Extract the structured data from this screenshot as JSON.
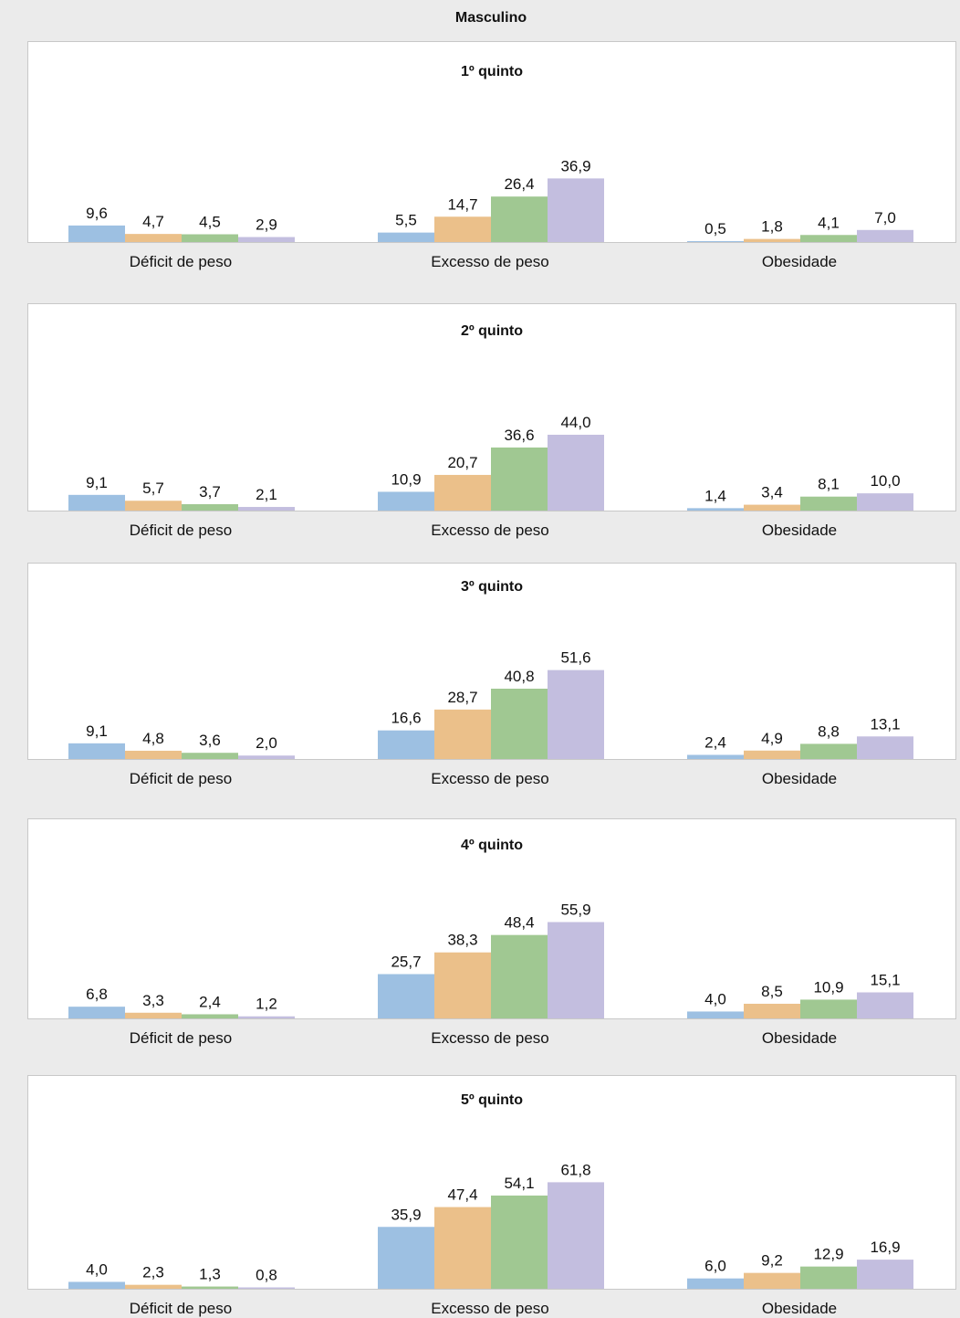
{
  "title": "Masculino",
  "colors": [
    "#9dc0e2",
    "#ebc08a",
    "#a0c892",
    "#c3bedf"
  ],
  "chart_data": [
    {
      "type": "bar",
      "title": "1º quinto",
      "categories": [
        "Déficit de peso",
        "Excesso de peso",
        "Obesidade"
      ],
      "series": [
        {
          "values": [
            9.6,
            5.5,
            0.5
          ]
        },
        {
          "values": [
            4.7,
            14.7,
            1.8
          ]
        },
        {
          "values": [
            4.5,
            26.4,
            4.1
          ]
        },
        {
          "values": [
            2.9,
            36.9,
            7.0
          ]
        }
      ],
      "value_labels": [
        [
          "9,6",
          "5,5",
          "0,5"
        ],
        [
          "4,7",
          "14,7",
          "1,8"
        ],
        [
          "4,5",
          "26,4",
          "4,1"
        ],
        [
          "2,9",
          "36,9",
          "7,0"
        ]
      ]
    },
    {
      "type": "bar",
      "title": "2º quinto",
      "categories": [
        "Déficit de peso",
        "Excesso de peso",
        "Obesidade"
      ],
      "series": [
        {
          "values": [
            9.1,
            10.9,
            1.4
          ]
        },
        {
          "values": [
            5.7,
            20.7,
            3.4
          ]
        },
        {
          "values": [
            3.7,
            36.6,
            8.1
          ]
        },
        {
          "values": [
            2.1,
            44.0,
            10.0
          ]
        }
      ],
      "value_labels": [
        [
          "9,1",
          "10,9",
          "1,4"
        ],
        [
          "5,7",
          "20,7",
          "3,4"
        ],
        [
          "3,7",
          "36,6",
          "8,1"
        ],
        [
          "2,1",
          "44,0",
          "10,0"
        ]
      ]
    },
    {
      "type": "bar",
      "title": "3º quinto",
      "categories": [
        "Déficit de peso",
        "Excesso de peso",
        "Obesidade"
      ],
      "series": [
        {
          "values": [
            9.1,
            16.6,
            2.4
          ]
        },
        {
          "values": [
            4.8,
            28.7,
            4.9
          ]
        },
        {
          "values": [
            3.6,
            40.8,
            8.8
          ]
        },
        {
          "values": [
            2.0,
            51.6,
            13.1
          ]
        }
      ],
      "value_labels": [
        [
          "9,1",
          "16,6",
          "2,4"
        ],
        [
          "4,8",
          "28,7",
          "4,9"
        ],
        [
          "3,6",
          "40,8",
          "8,8"
        ],
        [
          "2,0",
          "51,6",
          "13,1"
        ]
      ]
    },
    {
      "type": "bar",
      "title": "4º quinto",
      "categories": [
        "Déficit de peso",
        "Excesso de peso",
        "Obesidade"
      ],
      "series": [
        {
          "values": [
            6.8,
            25.7,
            4.0
          ]
        },
        {
          "values": [
            3.3,
            38.3,
            8.5
          ]
        },
        {
          "values": [
            2.4,
            48.4,
            10.9
          ]
        },
        {
          "values": [
            1.2,
            55.9,
            15.1
          ]
        }
      ],
      "value_labels": [
        [
          "6,8",
          "25,7",
          "4,0"
        ],
        [
          "3,3",
          "38,3",
          "8,5"
        ],
        [
          "2,4",
          "48,4",
          "10,9"
        ],
        [
          "1,2",
          "55,9",
          "15,1"
        ]
      ]
    },
    {
      "type": "bar",
      "title": "5º quinto",
      "categories": [
        "Déficit de peso",
        "Excesso de peso",
        "Obesidade"
      ],
      "series": [
        {
          "values": [
            4.0,
            35.9,
            6.0
          ]
        },
        {
          "values": [
            2.3,
            47.4,
            9.2
          ]
        },
        {
          "values": [
            1.3,
            54.1,
            12.9
          ]
        },
        {
          "values": [
            0.8,
            61.8,
            16.9
          ]
        }
      ],
      "value_labels": [
        [
          "4,0",
          "35,9",
          "6,0"
        ],
        [
          "2,3",
          "47,4",
          "9,2"
        ],
        [
          "1,3",
          "54,1",
          "12,9"
        ],
        [
          "0,8",
          "61,8",
          "16,9"
        ]
      ]
    }
  ]
}
